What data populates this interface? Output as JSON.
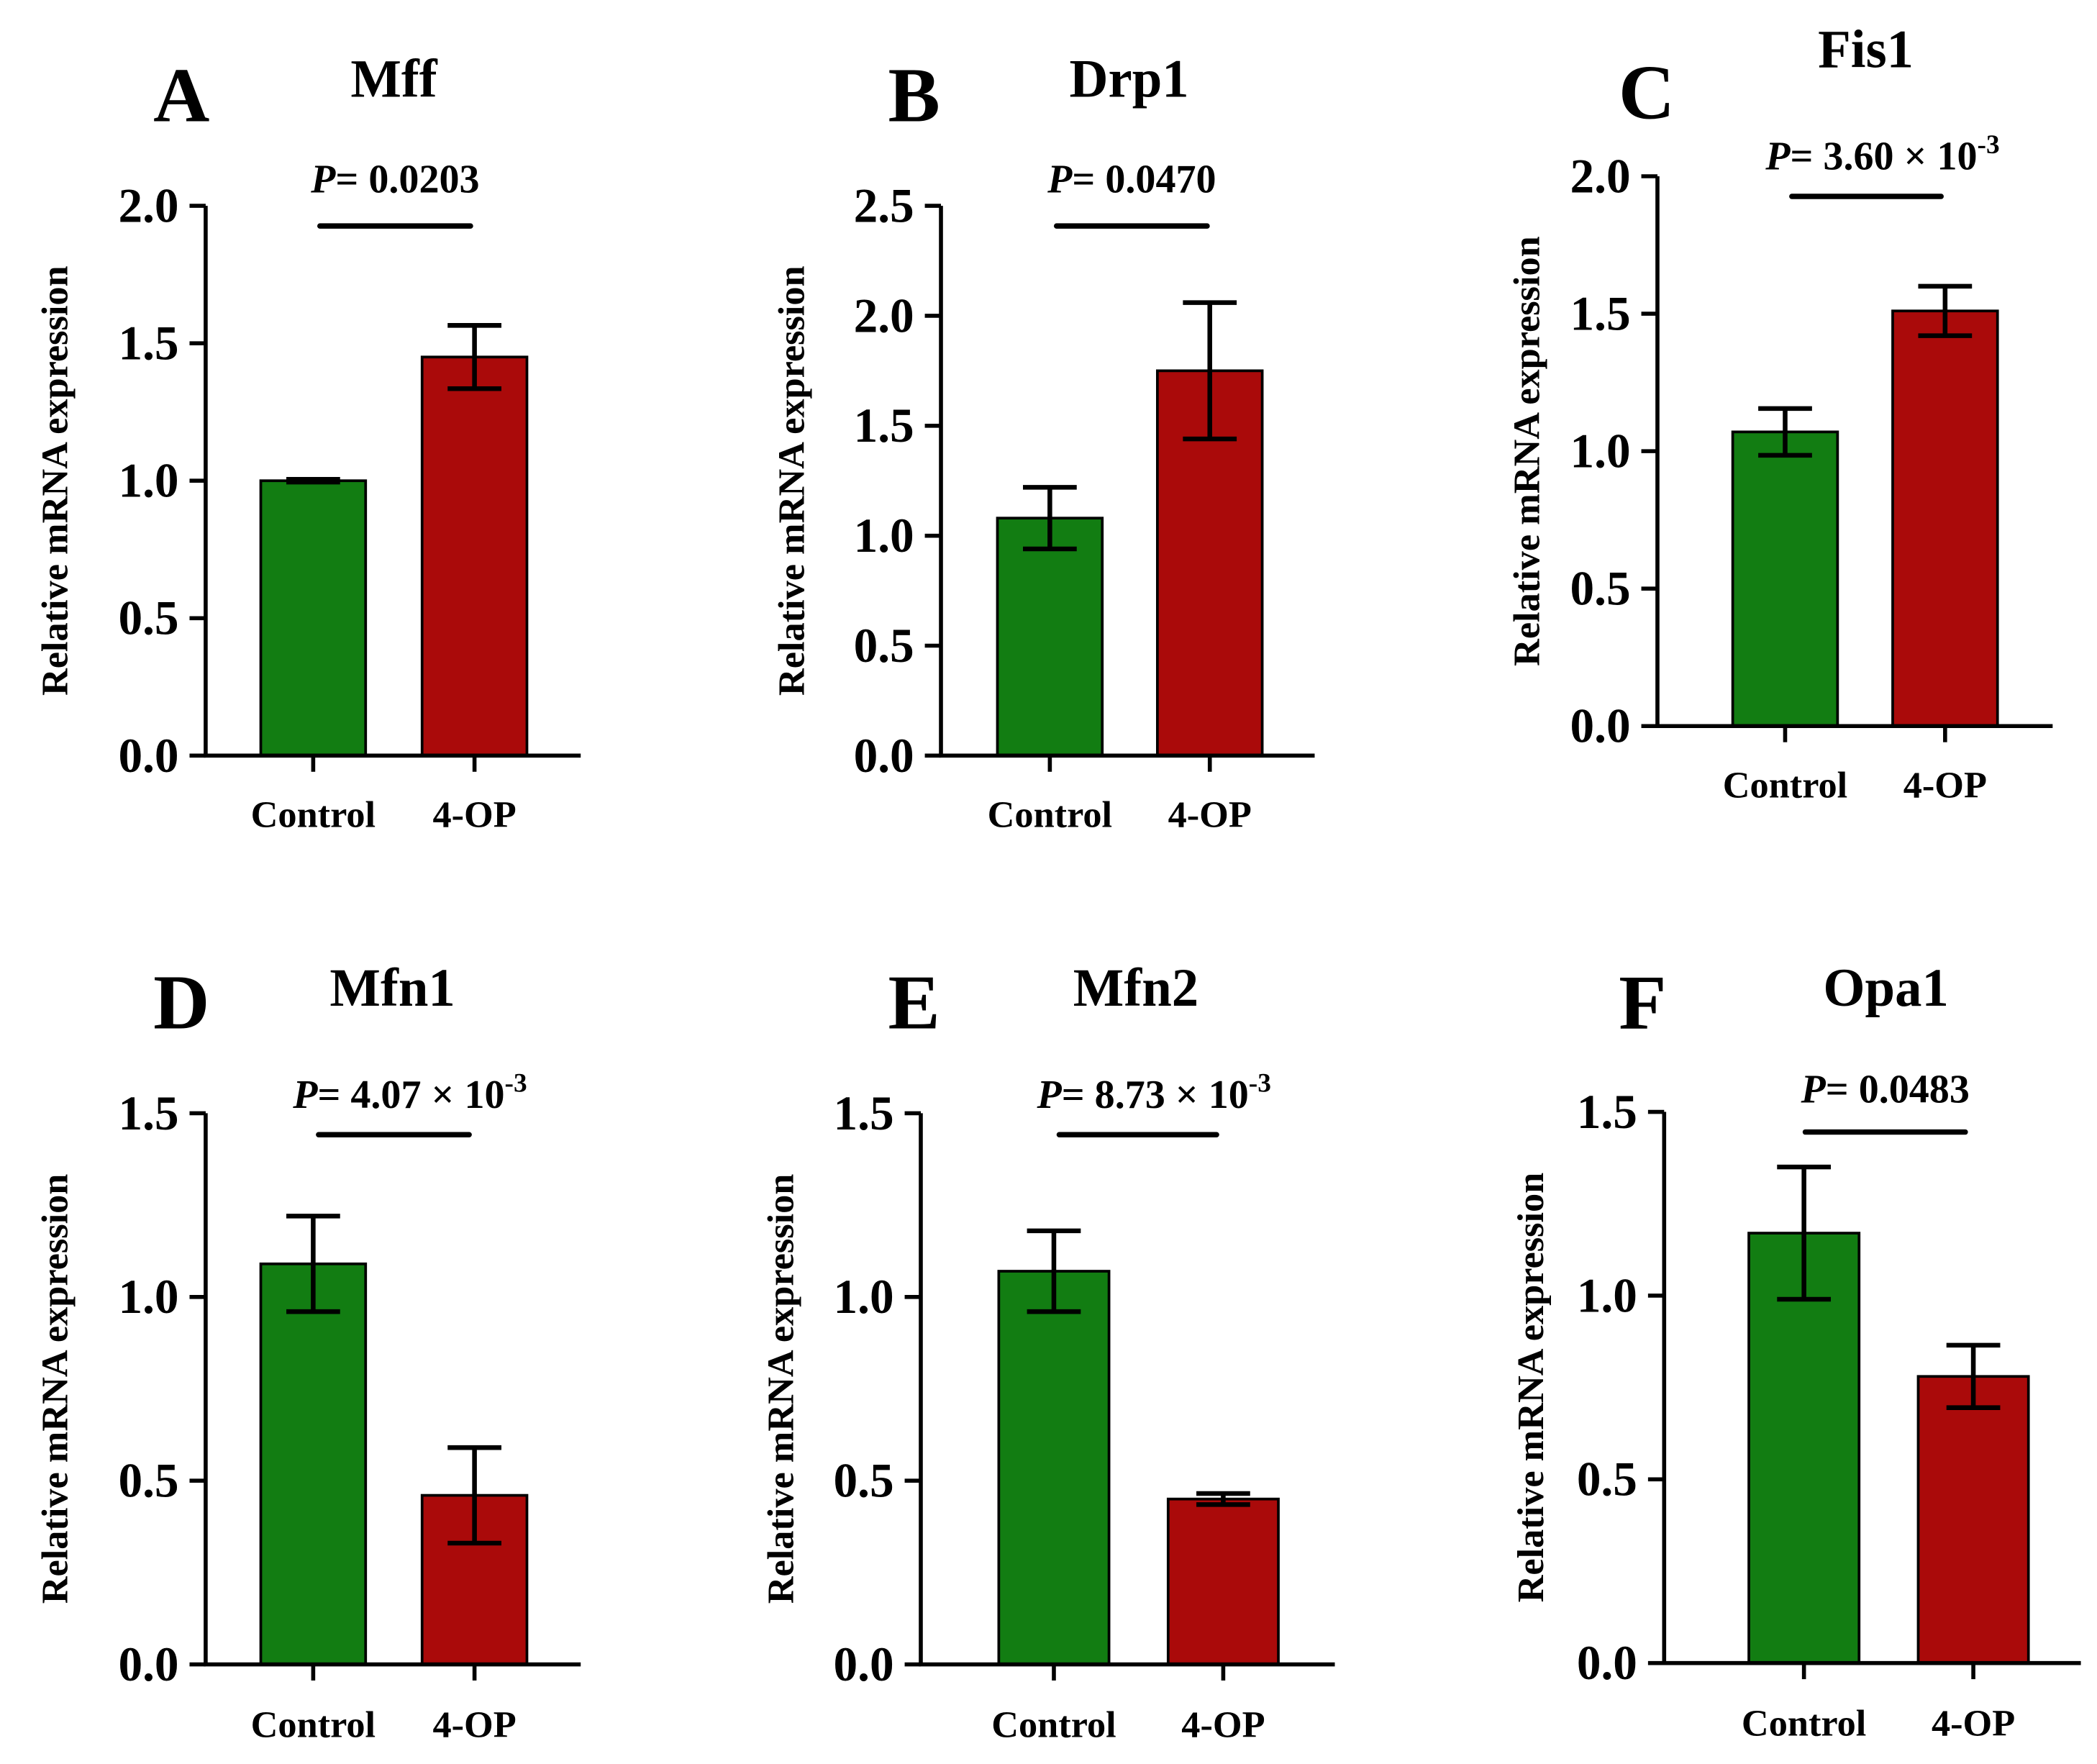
{
  "colors": {
    "control": "#127d12",
    "treated": "#aa0a0a",
    "axis": "#000000"
  },
  "chart_data": [
    {
      "type": "bar",
      "panel": "A",
      "title": "Mff",
      "ylabel": "Relative mRNA expression",
      "ylim": [
        0,
        2.0
      ],
      "yticks": [
        "0.0",
        "0.5",
        "1.0",
        "1.5",
        "2.0"
      ],
      "categories": [
        "Control",
        "4-OP"
      ],
      "values": [
        1.0,
        1.45
      ],
      "errors": [
        0.005,
        0.115
      ],
      "p_label": "P",
      "p_value": "= 0.0203",
      "p_exponent": ""
    },
    {
      "type": "bar",
      "panel": "B",
      "title": "Drp1",
      "ylabel": "Relative mRNA expression",
      "ylim": [
        0,
        2.5
      ],
      "yticks": [
        "0.0",
        "0.5",
        "1.0",
        "1.5",
        "2.0",
        "2.5"
      ],
      "categories": [
        "Control",
        "4-OP"
      ],
      "values": [
        1.08,
        1.75
      ],
      "errors": [
        0.14,
        0.31
      ],
      "p_label": "P",
      "p_value": "= 0.0470",
      "p_exponent": ""
    },
    {
      "type": "bar",
      "panel": "C",
      "title": "Fis1",
      "ylabel": "Relative mRNA expression",
      "ylim": [
        0,
        2.0
      ],
      "yticks": [
        "0.0",
        "0.5",
        "1.0",
        "1.5",
        "2.0"
      ],
      "categories": [
        "Control",
        "4-OP"
      ],
      "values": [
        1.07,
        1.51
      ],
      "errors": [
        0.085,
        0.09
      ],
      "p_label": "P",
      "p_value": "= 3.60 × 10",
      "p_exponent": "-3"
    },
    {
      "type": "bar",
      "panel": "D",
      "title": "Mfn1",
      "ylabel": "Relative mRNA expression",
      "ylim": [
        0,
        1.5
      ],
      "yticks": [
        "0.0",
        "0.5",
        "1.0",
        "1.5"
      ],
      "categories": [
        "Control",
        "4-OP"
      ],
      "values": [
        1.09,
        0.46
      ],
      "errors": [
        0.13,
        0.13
      ],
      "p_label": "P",
      "p_value": "= 4.07 × 10",
      "p_exponent": "-3"
    },
    {
      "type": "bar",
      "panel": "E",
      "title": "Mfn2",
      "ylabel": "Relative mRNA expression",
      "ylim": [
        0,
        1.5
      ],
      "yticks": [
        "0.0",
        "0.5",
        "1.0",
        "1.5"
      ],
      "categories": [
        "Control",
        "4-OP"
      ],
      "values": [
        1.07,
        0.45
      ],
      "errors": [
        0.11,
        0.015
      ],
      "p_label": "P",
      "p_value": "= 8.73 × 10",
      "p_exponent": "-3"
    },
    {
      "type": "bar",
      "panel": "F",
      "title": "Opa1",
      "ylabel": "Relative mRNA expression",
      "ylim": [
        0,
        1.5
      ],
      "yticks": [
        "0.0",
        "0.5",
        "1.0",
        "1.5"
      ],
      "categories": [
        "Control",
        "4-OP"
      ],
      "values": [
        1.17,
        0.78
      ],
      "errors": [
        0.18,
        0.085
      ],
      "p_label": "P",
      "p_value": "= 0.0483",
      "p_exponent": ""
    }
  ]
}
